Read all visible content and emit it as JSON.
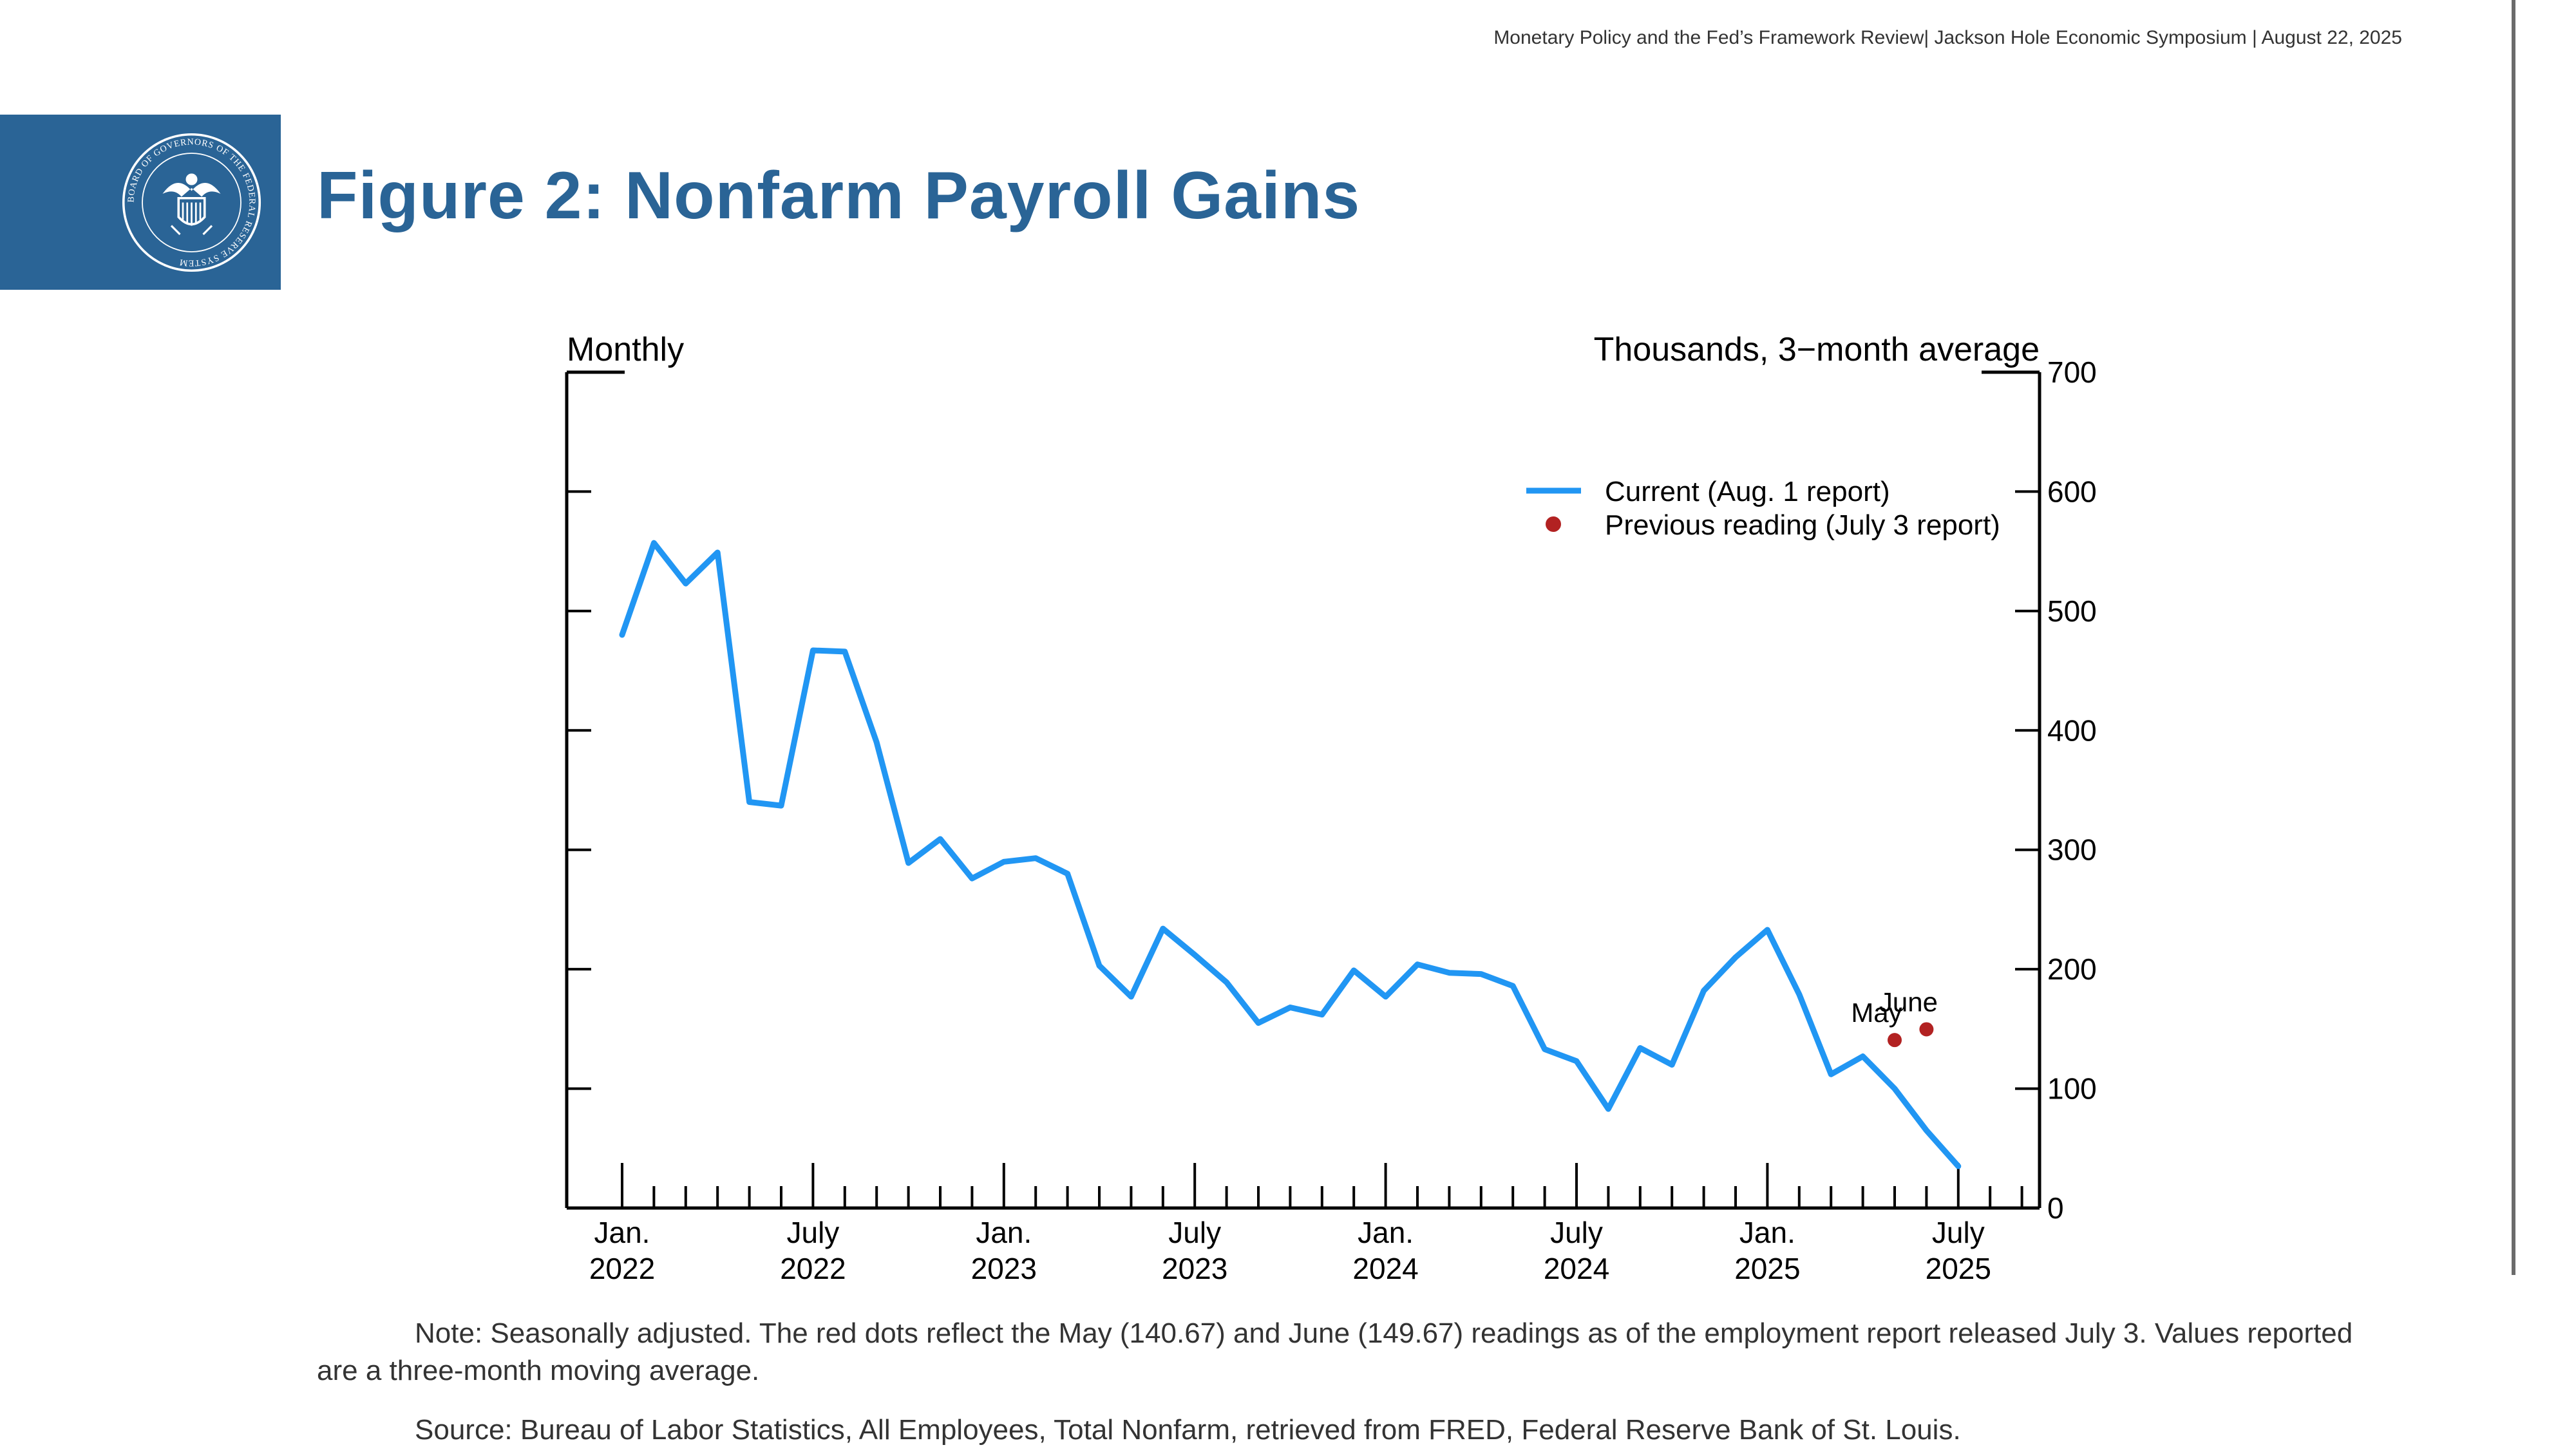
{
  "header": {
    "event_line": "Monetary Policy and the Fed’s Framework Review| Jackson Hole Economic Symposium | August 22, 2025"
  },
  "colors": {
    "brand_blue": "#2a6496",
    "series_line": "#2196f3",
    "previous_dot": "#b22222"
  },
  "logo": {
    "name": "federal-reserve-seal",
    "ring_text": "BOARD OF GOVERNORS OF THE FEDERAL RESERVE SYSTEM"
  },
  "title": "Figure 2: Nonfarm Payroll Gains",
  "chart_data": {
    "type": "line",
    "left_label": "Monthly",
    "right_label": "Thousands, 3−month average",
    "ylim": [
      0,
      700
    ],
    "y_ticks": [
      0,
      100,
      200,
      300,
      400,
      500,
      600,
      700
    ],
    "grid": false,
    "legend_position": "top-right",
    "x_tick_labels": [
      {
        "month": "Jan.",
        "year": "2022",
        "index": 0
      },
      {
        "month": "July",
        "year": "2022",
        "index": 6
      },
      {
        "month": "Jan.",
        "year": "2023",
        "index": 12
      },
      {
        "month": "July",
        "year": "2023",
        "index": 18
      },
      {
        "month": "Jan.",
        "year": "2024",
        "index": 24
      },
      {
        "month": "July",
        "year": "2024",
        "index": 30
      },
      {
        "month": "Jan.",
        "year": "2025",
        "index": 36
      },
      {
        "month": "July",
        "year": "2025",
        "index": 42
      }
    ],
    "series": [
      {
        "name": "Current (Aug. 1 report)",
        "x": [
          "2022-01",
          "2022-02",
          "2022-03",
          "2022-04",
          "2022-05",
          "2022-06",
          "2022-07",
          "2022-08",
          "2022-09",
          "2022-10",
          "2022-11",
          "2022-12",
          "2023-01",
          "2023-02",
          "2023-03",
          "2023-04",
          "2023-05",
          "2023-06",
          "2023-07",
          "2023-08",
          "2023-09",
          "2023-10",
          "2023-11",
          "2023-12",
          "2024-01",
          "2024-02",
          "2024-03",
          "2024-04",
          "2024-05",
          "2024-06",
          "2024-07",
          "2024-08",
          "2024-09",
          "2024-10",
          "2024-11",
          "2024-12",
          "2025-01",
          "2025-02",
          "2025-03",
          "2025-04",
          "2025-05",
          "2025-06",
          "2025-07"
        ],
        "values": [
          480,
          557,
          523,
          549,
          340,
          337,
          467,
          466,
          390,
          289,
          309,
          276,
          290,
          293,
          280,
          203,
          177,
          234,
          212,
          189,
          155,
          168,
          162,
          199,
          177,
          204,
          197,
          196,
          186,
          133,
          123,
          83,
          134,
          120,
          182,
          210,
          233,
          179,
          112,
          127,
          100,
          65,
          35
        ]
      },
      {
        "name": "Previous reading (July 3 report)",
        "type": "scatter",
        "points": [
          {
            "label": "May",
            "x": "2025-05",
            "value": 140.67
          },
          {
            "label": "June",
            "x": "2025-06",
            "value": 149.67
          }
        ]
      }
    ]
  },
  "note": "Note: Seasonally adjusted. The red dots reflect the May (140.67) and June (149.67) readings as of the employment report released July 3. Values reported are a three-month moving average.",
  "source": "Source: Bureau of Labor Statistics, All Employees, Total Nonfarm, retrieved from FRED, Federal Reserve Bank of St. Louis."
}
